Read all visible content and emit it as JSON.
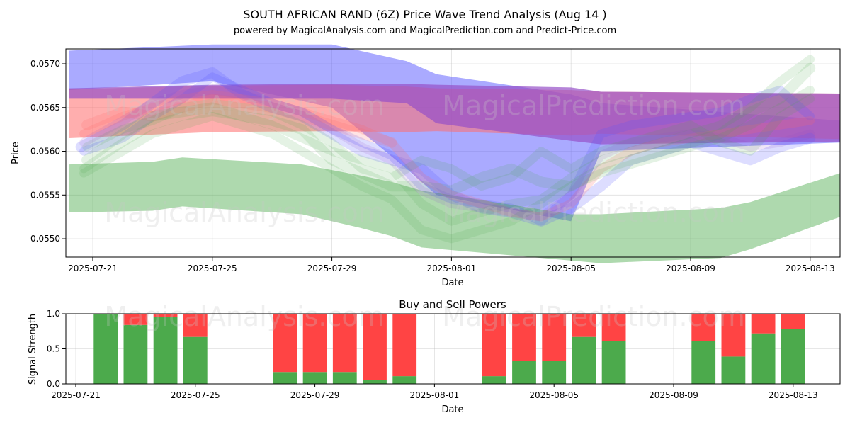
{
  "title": "SOUTH AFRICAN RAND (6Z) Price Wave Trend Analysis (Aug 14 )",
  "subtitle": "powered by MagicalAnalysis.com and MagicalPrediction.com and Predict-Price.com",
  "watermarks": [
    "MagicalAnalysis.com",
    "MagicalPrediction.com"
  ],
  "colors": {
    "blue": "#5555ff",
    "red": "#ff6b6b",
    "purple": "#9650c8",
    "green": "#4caa4c",
    "sell": "#ff4444",
    "buy": "#4caa4c"
  },
  "chart_data": [
    {
      "type": "area",
      "title": "",
      "xlabel": "Date",
      "ylabel": "Price",
      "xlim": [
        -0.9,
        25.0
      ],
      "ylim": [
        0.05479,
        0.05717
      ],
      "yticks": [
        0.055,
        0.0555,
        0.056,
        0.0565,
        0.057
      ],
      "ytick_labels": [
        "0.0550",
        "0.0555",
        "0.0560",
        "0.0565",
        "0.0570"
      ],
      "xticks": [
        0,
        4,
        8,
        12,
        16,
        20,
        24
      ],
      "xtick_labels": [
        "2025-07-21",
        "2025-07-25",
        "2025-07-29",
        "2025-08-01",
        "2025-08-05",
        "2025-08-09",
        "2025-08-13"
      ],
      "series": [
        {
          "name": "blue-band",
          "color": "blue",
          "opacity": 0.5,
          "x": [
            -0.8,
            4,
            8,
            10.5,
            11.5,
            16,
            17,
            25
          ],
          "upper": [
            0.05715,
            0.05722,
            0.05722,
            0.05703,
            0.05688,
            0.05665,
            0.05655,
            0.05635
          ],
          "lower": [
            0.0567,
            0.0568,
            0.0565,
            0.0558,
            0.0555,
            0.0552,
            0.056,
            0.0561
          ]
        },
        {
          "name": "red-band",
          "color": "red",
          "opacity": 0.55,
          "x": [
            -0.8,
            4,
            8,
            10.5,
            11.5,
            16,
            17,
            25
          ],
          "upper": [
            0.05671,
            0.05675,
            0.05676,
            0.05674,
            0.05672,
            0.0567,
            0.05668,
            0.05666
          ],
          "lower": [
            0.05615,
            0.05622,
            0.05623,
            0.05622,
            0.05623,
            0.05618,
            0.0562,
            0.05614
          ]
        },
        {
          "name": "purple-band",
          "color": "purple",
          "opacity": 0.7,
          "x": [
            -0.8,
            4,
            8,
            10.5,
            11.5,
            16,
            17,
            25
          ],
          "upper": [
            0.05672,
            0.05676,
            0.05677,
            0.05677,
            0.05676,
            0.05673,
            0.05668,
            0.05666
          ],
          "lower": [
            0.0566,
            0.0566,
            0.0566,
            0.05655,
            0.05632,
            0.05612,
            0.05608,
            0.05611
          ]
        },
        {
          "name": "green-band",
          "color": "green",
          "opacity": 0.45,
          "x": [
            -0.8,
            2,
            3,
            7,
            9,
            10,
            11,
            16,
            17,
            21,
            22,
            25
          ],
          "upper": [
            0.05585,
            0.05588,
            0.05593,
            0.05585,
            0.05572,
            0.05565,
            0.05555,
            0.05528,
            0.05528,
            0.05535,
            0.05542,
            0.05575
          ],
          "lower": [
            0.0553,
            0.05532,
            0.05537,
            0.05528,
            0.05512,
            0.05503,
            0.0549,
            0.05475,
            0.05472,
            0.05478,
            0.05488,
            0.05525
          ]
        }
      ],
      "waves": [
        {
          "color": "blue",
          "opacity": 0.2,
          "width": 0.00012,
          "x": [
            -0.4,
            1,
            2,
            3,
            4,
            5,
            6,
            7,
            8,
            9,
            10,
            11,
            12,
            13,
            14,
            15,
            16,
            17,
            18,
            19,
            20,
            21,
            22,
            23,
            24
          ],
          "y": [
            0.05605,
            0.0563,
            0.05655,
            0.0568,
            0.0569,
            0.05665,
            0.0565,
            0.0564,
            0.0562,
            0.056,
            0.0559,
            0.0558,
            0.0555,
            0.05535,
            0.0553,
            0.0552,
            0.05535,
            0.0556,
            0.0559,
            0.056,
            0.0561,
            0.056,
            0.0559,
            0.05605,
            0.05615
          ]
        },
        {
          "color": "blue",
          "opacity": 0.2,
          "width": 0.0001,
          "x": [
            -0.3,
            1,
            2,
            3,
            4,
            5,
            6,
            7,
            8,
            9,
            10,
            11,
            12,
            13,
            14,
            15,
            16,
            17,
            18,
            19,
            20,
            21,
            22,
            23,
            24
          ],
          "y": [
            0.056,
            0.05615,
            0.0564,
            0.0566,
            0.05685,
            0.0567,
            0.05655,
            0.05645,
            0.05625,
            0.0561,
            0.05595,
            0.0556,
            0.05545,
            0.0554,
            0.05535,
            0.0552,
            0.0555,
            0.0562,
            0.0563,
            0.05635,
            0.0564,
            0.05645,
            0.0566,
            0.0567,
            0.0564
          ]
        },
        {
          "color": "red",
          "opacity": 0.2,
          "width": 0.0001,
          "x": [
            -0.3,
            1,
            2,
            3,
            4,
            5,
            6,
            7,
            8,
            9,
            10,
            11,
            12,
            13,
            14,
            15,
            16,
            17,
            18,
            19,
            20,
            21,
            22,
            23,
            24
          ],
          "y": [
            0.0562,
            0.0564,
            0.0565,
            0.0566,
            0.05665,
            0.0566,
            0.05655,
            0.05645,
            0.05635,
            0.05625,
            0.0561,
            0.0557,
            0.0555,
            0.0554,
            0.0553,
            0.05525,
            0.0554,
            0.0558,
            0.056,
            0.0561,
            0.05615,
            0.0562,
            0.05625,
            0.0563,
            0.05635
          ]
        },
        {
          "color": "red",
          "opacity": 0.18,
          "width": 0.00012,
          "x": [
            -0.2,
            1,
            2,
            3,
            4,
            5,
            6,
            7,
            8,
            9,
            10
          ],
          "y": [
            0.0563,
            0.05645,
            0.0564,
            0.0565,
            0.0566,
            0.05655,
            0.0565,
            0.0564,
            0.0563,
            0.0562,
            0.0561
          ]
        },
        {
          "color": "green",
          "opacity": 0.15,
          "width": 0.00012,
          "x": [
            -0.2,
            1,
            2,
            3,
            4,
            5,
            6,
            7,
            8,
            9,
            10,
            11,
            12,
            13,
            14,
            15,
            16,
            17,
            18,
            19,
            20,
            21,
            22,
            23,
            24
          ],
          "y": [
            0.0559,
            0.0562,
            0.0564,
            0.05645,
            0.0565,
            0.0564,
            0.05635,
            0.05625,
            0.0559,
            0.05575,
            0.0556,
            0.0556,
            0.05555,
            0.0557,
            0.0558,
            0.05565,
            0.0556,
            0.0558,
            0.0559,
            0.056,
            0.0561,
            0.0562,
            0.05645,
            0.0566,
            0.05695
          ]
        },
        {
          "color": "green",
          "opacity": 0.15,
          "width": 0.0001,
          "x": [
            -0.3,
            1,
            2,
            3,
            4,
            5,
            6,
            7,
            8,
            9,
            10,
            11,
            12,
            13,
            14,
            15,
            16,
            17,
            18,
            19,
            20,
            21,
            22,
            23,
            24
          ],
          "y": [
            0.0558,
            0.0561,
            0.0563,
            0.0564,
            0.05645,
            0.0564,
            0.0563,
            0.05615,
            0.056,
            0.0559,
            0.0558,
            0.0554,
            0.0552,
            0.0553,
            0.0554,
            0.05545,
            0.0557,
            0.0559,
            0.056,
            0.0561,
            0.0562,
            0.0563,
            0.0565,
            0.0568,
            0.05705
          ]
        },
        {
          "color": "green",
          "opacity": 0.15,
          "width": 0.0001,
          "x": [
            -0.2,
            1,
            2,
            3,
            4,
            5,
            6,
            7,
            8,
            9,
            10,
            11,
            12,
            13,
            14,
            15,
            16,
            17,
            18,
            19,
            20,
            21,
            22,
            23,
            24
          ],
          "y": [
            0.05605,
            0.05625,
            0.05635,
            0.0565,
            0.05655,
            0.0565,
            0.05645,
            0.0563,
            0.0561,
            0.0558,
            0.0557,
            0.0559,
            0.0558,
            0.0556,
            0.0557,
            0.056,
            0.0558,
            0.056,
            0.0561,
            0.0562,
            0.0563,
            0.0561,
            0.056,
            0.0564,
            0.0566
          ]
        },
        {
          "color": "green",
          "opacity": 0.15,
          "width": 0.0001,
          "x": [
            -0.3,
            1,
            2,
            3,
            4,
            5,
            6,
            7,
            8,
            9,
            10,
            11,
            12,
            13,
            14,
            15,
            16,
            17,
            18,
            19,
            20,
            21,
            22,
            23,
            24
          ],
          "y": [
            0.05575,
            0.056,
            0.0562,
            0.0563,
            0.0564,
            0.0563,
            0.0562,
            0.056,
            0.0558,
            0.0556,
            0.05545,
            0.0551,
            0.055,
            0.0551,
            0.0552,
            0.0554,
            0.0556,
            0.05575,
            0.05585,
            0.05595,
            0.05605,
            0.05615,
            0.0563,
            0.0565,
            0.0567
          ]
        },
        {
          "color": "purple",
          "opacity": 0.15,
          "width": 0.0001,
          "x": [
            -0.3,
            1,
            2,
            3,
            4,
            5,
            6,
            7,
            8,
            9,
            10,
            11,
            12,
            13,
            14,
            15,
            16,
            17,
            18,
            19,
            20,
            21,
            22,
            23,
            24
          ],
          "y": [
            0.0561,
            0.05635,
            0.05655,
            0.05665,
            0.0567,
            0.05665,
            0.05655,
            0.05645,
            0.05625,
            0.05605,
            0.0559,
            0.05555,
            0.0554,
            0.05535,
            0.0553,
            0.05525,
            0.0555,
            0.05595,
            0.0561,
            0.05615,
            0.0562,
            0.05615,
            0.05605,
            0.0561,
            0.0562
          ]
        }
      ]
    },
    {
      "type": "bar",
      "stacked": true,
      "title": "Buy and Sell Powers",
      "xlabel": "Date",
      "ylabel": "Signal Strength",
      "xlim": [
        -0.9,
        25.0
      ],
      "ylim": [
        0,
        1.0
      ],
      "yticks": [
        0.0,
        0.5,
        1.0
      ],
      "ytick_labels": [
        "0.0",
        "0.5",
        "1.0"
      ],
      "xticks": [
        0,
        4,
        8,
        12,
        16,
        20,
        24
      ],
      "xtick_labels": [
        "2025-07-21",
        "2025-07-25",
        "2025-07-29",
        "2025-08-01",
        "2025-08-05",
        "2025-08-09",
        "2025-08-13"
      ],
      "x": [
        1,
        2,
        3,
        4,
        7,
        8,
        9,
        10,
        11,
        14,
        15,
        16,
        17,
        18,
        21,
        22,
        23,
        24
      ],
      "series": [
        {
          "name": "Buy",
          "color": "buy",
          "values": [
            1.0,
            0.84,
            0.95,
            0.67,
            0.17,
            0.17,
            0.17,
            0.06,
            0.11,
            0.11,
            0.33,
            0.33,
            0.67,
            0.61,
            0.61,
            0.39,
            0.72,
            0.78
          ]
        },
        {
          "name": "Sell",
          "color": "sell",
          "values": [
            0.0,
            0.16,
            0.05,
            0.33,
            0.83,
            0.83,
            0.83,
            0.94,
            0.89,
            0.89,
            0.67,
            0.67,
            0.33,
            0.39,
            0.39,
            0.61,
            0.28,
            0.22
          ]
        }
      ]
    }
  ]
}
